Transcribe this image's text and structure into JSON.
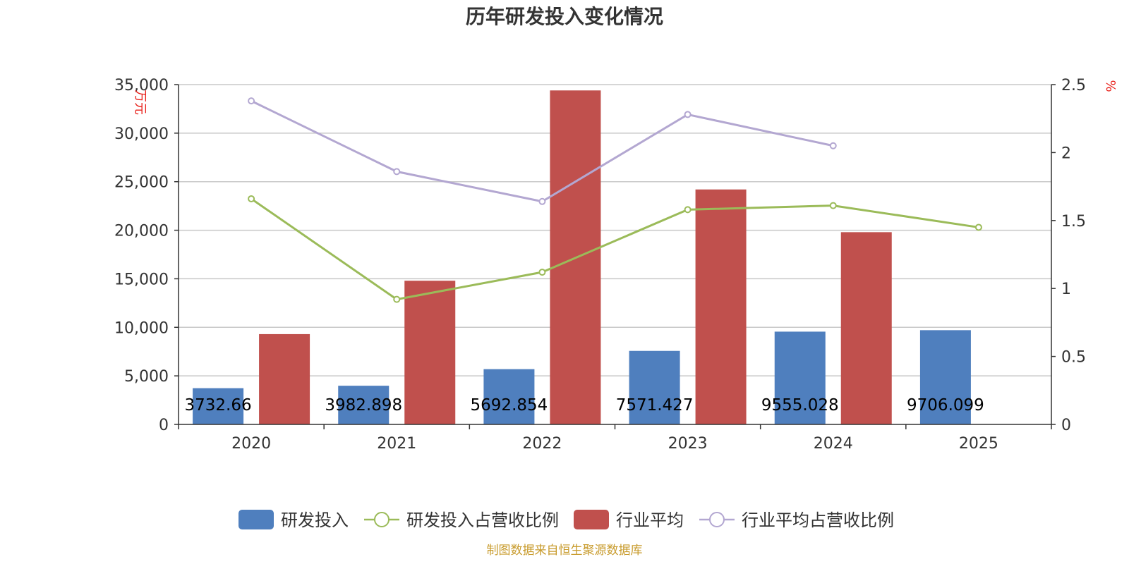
{
  "title": "历年研发投入变化情况",
  "source_note": "制图数据来自恒生聚源数据库",
  "colors": {
    "rd_bar": "#4f7fbe",
    "industry_bar": "#c0504d",
    "rd_ratio_line": "#9bbb59",
    "industry_ratio_line": "#b3a7d1",
    "grid": "#c9c9c9",
    "axis": "#333333",
    "unit_text": "#e8201a"
  },
  "chart_data": {
    "type": "bar",
    "categories": [
      "2020",
      "2021",
      "2022",
      "2023",
      "2024",
      "2025"
    ],
    "y_left": {
      "unit": "万元",
      "min": 0,
      "max": 35000,
      "ticks": [
        "0",
        "5,000",
        "10,000",
        "15,000",
        "20,000",
        "25,000",
        "30,000",
        "35,000"
      ]
    },
    "y_right": {
      "unit": "%",
      "min": 0,
      "max": 2.5,
      "ticks": [
        "0",
        "0.5",
        "1",
        "1.5",
        "2",
        "2.5"
      ]
    },
    "grid": true,
    "legend_position": "bottom",
    "series": [
      {
        "name": "研发投入",
        "kind": "bar",
        "axis": "left",
        "values": [
          3732.66,
          3982.898,
          5692.854,
          7571.427,
          9555.028,
          9706.099
        ],
        "labels": [
          "3732.66",
          "3982.898",
          "5692.854",
          "7571.427",
          "9555.028",
          "9706.099"
        ]
      },
      {
        "name": "研发投入占营收比例",
        "kind": "line",
        "axis": "right",
        "values": [
          1.66,
          0.92,
          1.12,
          1.58,
          1.61,
          1.45
        ]
      },
      {
        "name": "行业平均",
        "kind": "bar",
        "axis": "left",
        "values": [
          9300,
          14800,
          34400,
          24200,
          19800,
          null
        ]
      },
      {
        "name": "行业平均占营收比例",
        "kind": "line",
        "axis": "right",
        "values": [
          2.38,
          1.86,
          1.64,
          2.28,
          2.05,
          null
        ]
      }
    ]
  }
}
